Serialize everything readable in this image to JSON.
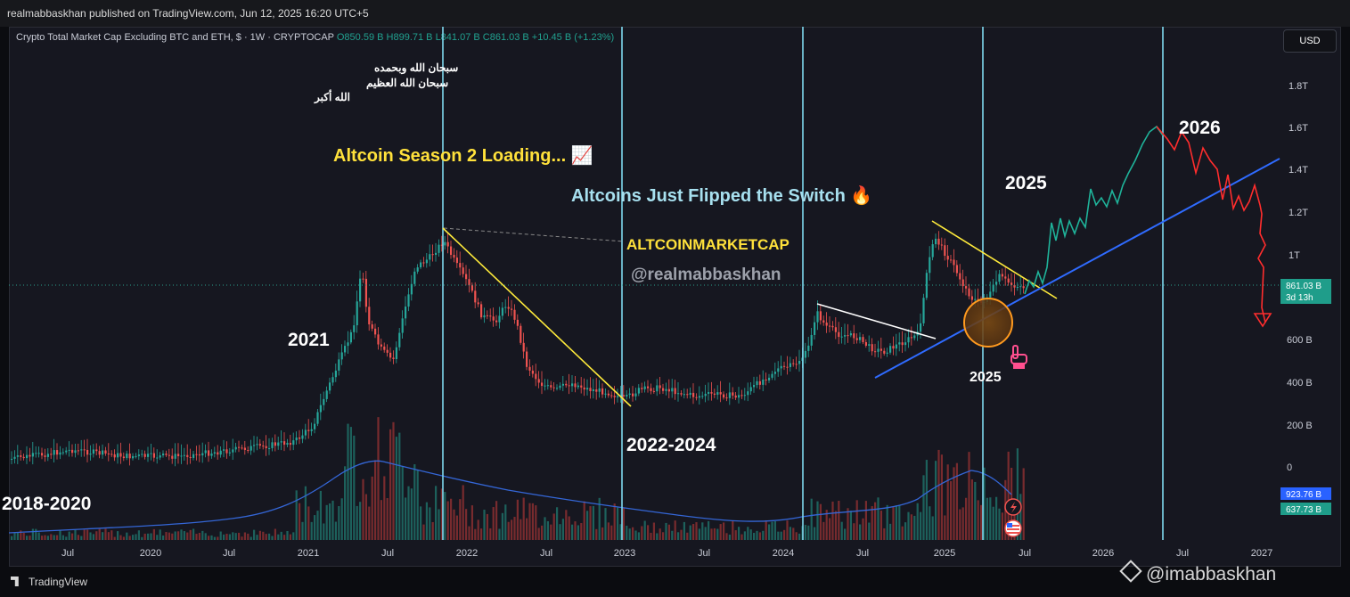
{
  "header": {
    "published": "realmabbaskhan published on TradingView.com, Jun 12, 2025 16:20 UTC+5"
  },
  "symbol": {
    "title": "Crypto Total Market Cap Excluding BTC and ETH, $ · 1W · CRYPTOCAP",
    "ohlc": "O850.59 B  H899.71 B  L841.07 B  C861.03 B  +10.45 B (+1.23%)"
  },
  "currency_button": "USD",
  "annotations": {
    "arabic_line1": "سبحان الله وبحمده",
    "arabic_line2": "سبحان الله العظيم",
    "arabic_line3": "الله أكبر",
    "season": "Altcoin Season 2 Loading... 📈",
    "flipped": "Altcoins Just Flipped the Switch 🔥",
    "market_cap_label": "ALTCOINMARKETCAP",
    "handle": "@realmabbaskhan",
    "label_2021": "2021",
    "label_2018_2020": "2018-2020",
    "label_2022_2024": "2022-2024",
    "label_2025_top": "2025",
    "label_2025_circle": "2025",
    "label_2026": "2026"
  },
  "price_axis": {
    "ticks": [
      "1.8T",
      "1.6T",
      "1.4T",
      "1.2T",
      "1T",
      "600 B",
      "400 B",
      "200 B",
      "0"
    ],
    "current_price": "861.03 B",
    "countdown": "3d 13h",
    "volume_1": "923.76 B",
    "volume_2": "637.73 B"
  },
  "time_axis": {
    "labels": [
      "Jul",
      "2020",
      "Jul",
      "2021",
      "Jul",
      "2022",
      "Jul",
      "2023",
      "Jul",
      "2024",
      "Jul",
      "2025",
      "Jul",
      "2026",
      "Jul",
      "2027"
    ]
  },
  "footer": {
    "brand": "TradingView",
    "watermark": "@imabbaskhan"
  },
  "colors": {
    "up": "#26a69a",
    "down": "#ef5350",
    "vline": "#7fd9ef",
    "trend_yellow": "#ffeb3b",
    "trend_blue": "#2f6bff",
    "projection_up": "#1fb39a",
    "projection_down": "#ff2d2d",
    "ma_line": "#3466d6"
  }
}
